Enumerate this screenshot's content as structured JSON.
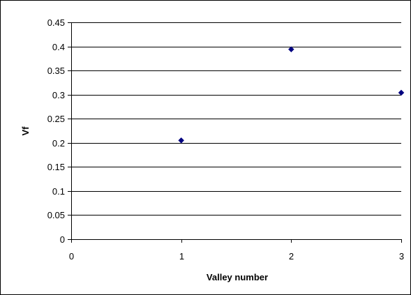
{
  "chart_data": {
    "type": "scatter",
    "title": "",
    "xlabel": "Valley number",
    "ylabel": "Vf",
    "xlim": [
      0,
      3
    ],
    "ylim": [
      0,
      0.45
    ],
    "x_ticks": [
      "0",
      "1",
      "2",
      "3"
    ],
    "y_ticks": [
      "0",
      "0.05",
      "0.1",
      "0.15",
      "0.2",
      "0.25",
      "0.3",
      "0.35",
      "0.4",
      "0.45"
    ],
    "grid": "horizontal",
    "legend": "none",
    "marker": "diamond",
    "series": [
      {
        "color": "#000080",
        "points": [
          {
            "x": 1,
            "y": 0.205
          },
          {
            "x": 2,
            "y": 0.394
          },
          {
            "x": 3,
            "y": 0.304
          }
        ]
      }
    ]
  }
}
